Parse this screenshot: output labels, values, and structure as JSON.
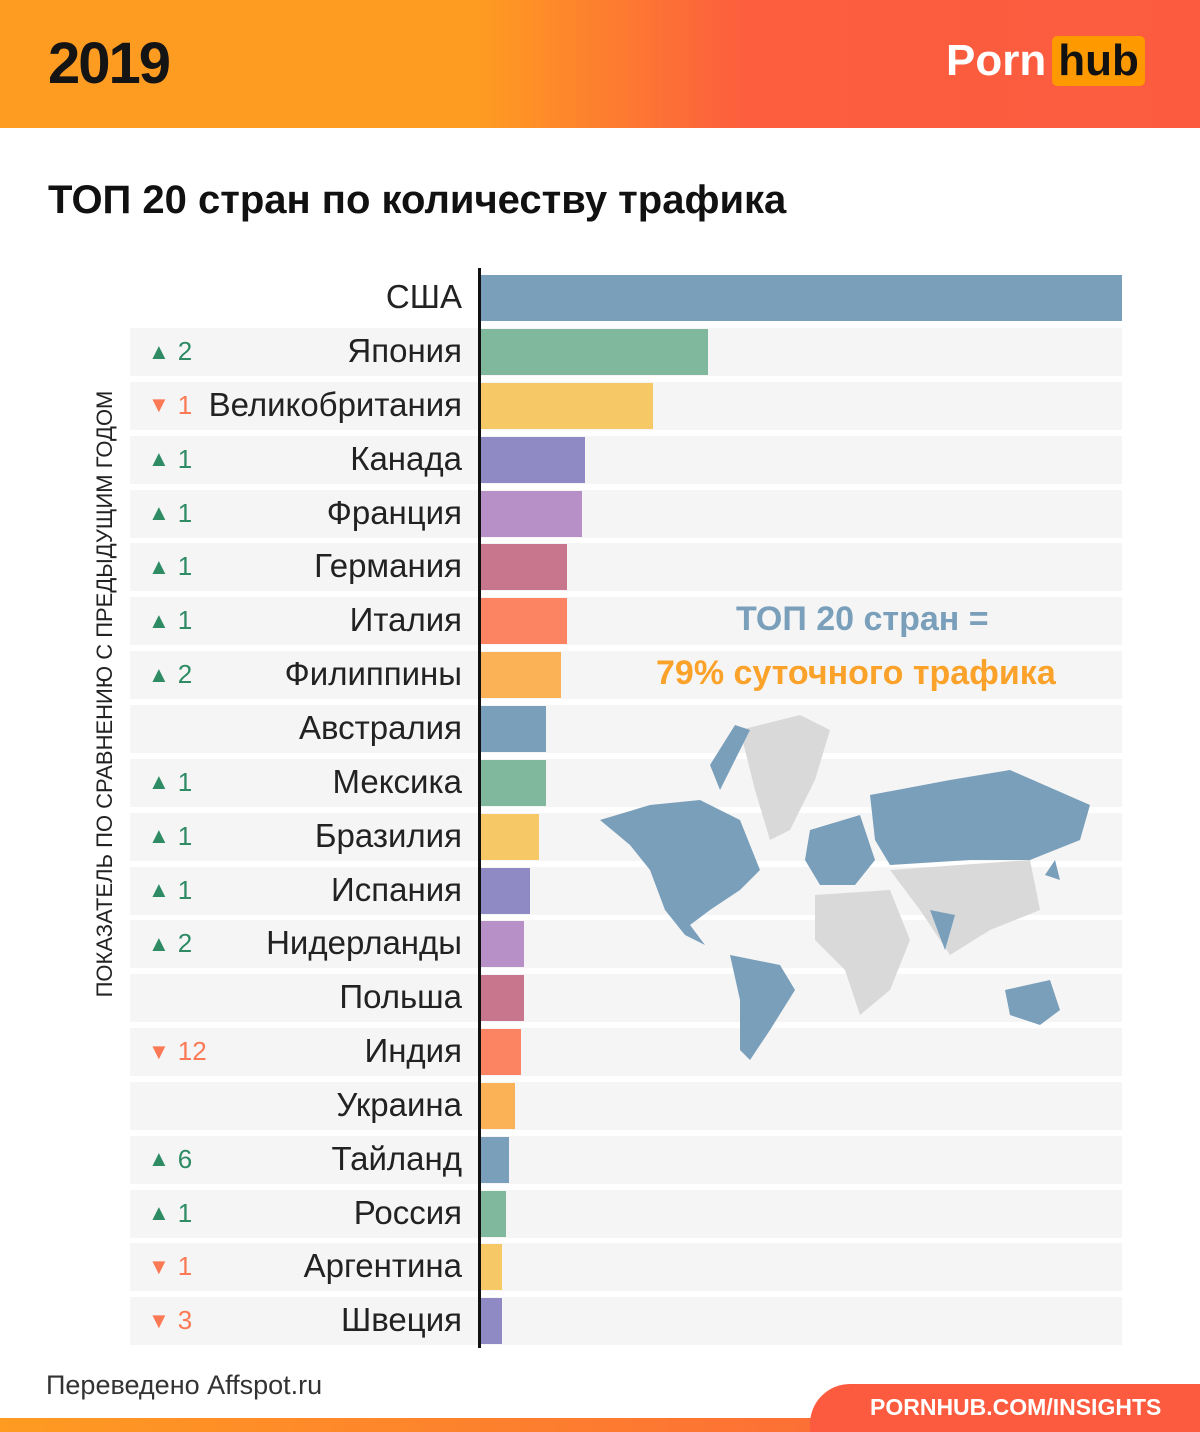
{
  "header": {
    "year": "2019",
    "logo_left": "Porn",
    "logo_right": "hub"
  },
  "footer": {
    "credit": "Переведено Affspot.ru",
    "site": "PORNHUB.COM/INSIGHTS"
  },
  "chart_data": {
    "type": "bar",
    "orientation": "horizontal",
    "title": "ТОП 20 стран по количеству трафика",
    "ylabel": "ПОКАЗАТЕЛЬ ПО СРАВНЕНИЮ С ПРЕДЫДУЩИМ ГОДОМ",
    "value_units": "relative, USA = 100 (no axis printed)",
    "annotation": [
      "ТОП 20 стран =",
      "79% суточного трафика"
    ],
    "categories": [
      "США",
      "Япония",
      "Великобритания",
      "Канада",
      "Франция",
      "Германия",
      "Италия",
      "Филиппины",
      "Австралия",
      "Мексика",
      "Бразилия",
      "Испания",
      "Нидерланды",
      "Польша",
      "Индия",
      "Украина",
      "Тайланд",
      "Россия",
      "Аргентина",
      "Швеция"
    ],
    "values": [
      100,
      35.4,
      26.8,
      16.2,
      15.7,
      13.4,
      13.4,
      12.5,
      10.1,
      10.1,
      9.0,
      7.6,
      6.7,
      6.7,
      6.2,
      5.3,
      4.4,
      3.9,
      3.3,
      3.3
    ],
    "rank_change": [
      null,
      {
        "dir": "up",
        "n": "2"
      },
      {
        "dir": "down",
        "n": "1"
      },
      {
        "dir": "up",
        "n": "1"
      },
      {
        "dir": "up",
        "n": "1"
      },
      {
        "dir": "up",
        "n": "1"
      },
      {
        "dir": "up",
        "n": "1"
      },
      {
        "dir": "up",
        "n": "2"
      },
      null,
      {
        "dir": "up",
        "n": "1"
      },
      {
        "dir": "up",
        "n": "1"
      },
      {
        "dir": "up",
        "n": "1"
      },
      {
        "dir": "up",
        "n": "2"
      },
      null,
      {
        "dir": "down",
        "n": "12"
      },
      null,
      {
        "dir": "up",
        "n": "6"
      },
      {
        "dir": "up",
        "n": "1"
      },
      {
        "dir": "down",
        "n": "1"
      },
      {
        "dir": "down",
        "n": "3"
      }
    ],
    "colors": [
      "#7a9fbb",
      "#7fb89c",
      "#f6c966",
      "#8f89c4",
      "#b690c6",
      "#c8768d",
      "#fd8462",
      "#fbb155"
    ],
    "up_color": "#2e8b64",
    "down_color": "#fb7a55",
    "grid": false
  }
}
